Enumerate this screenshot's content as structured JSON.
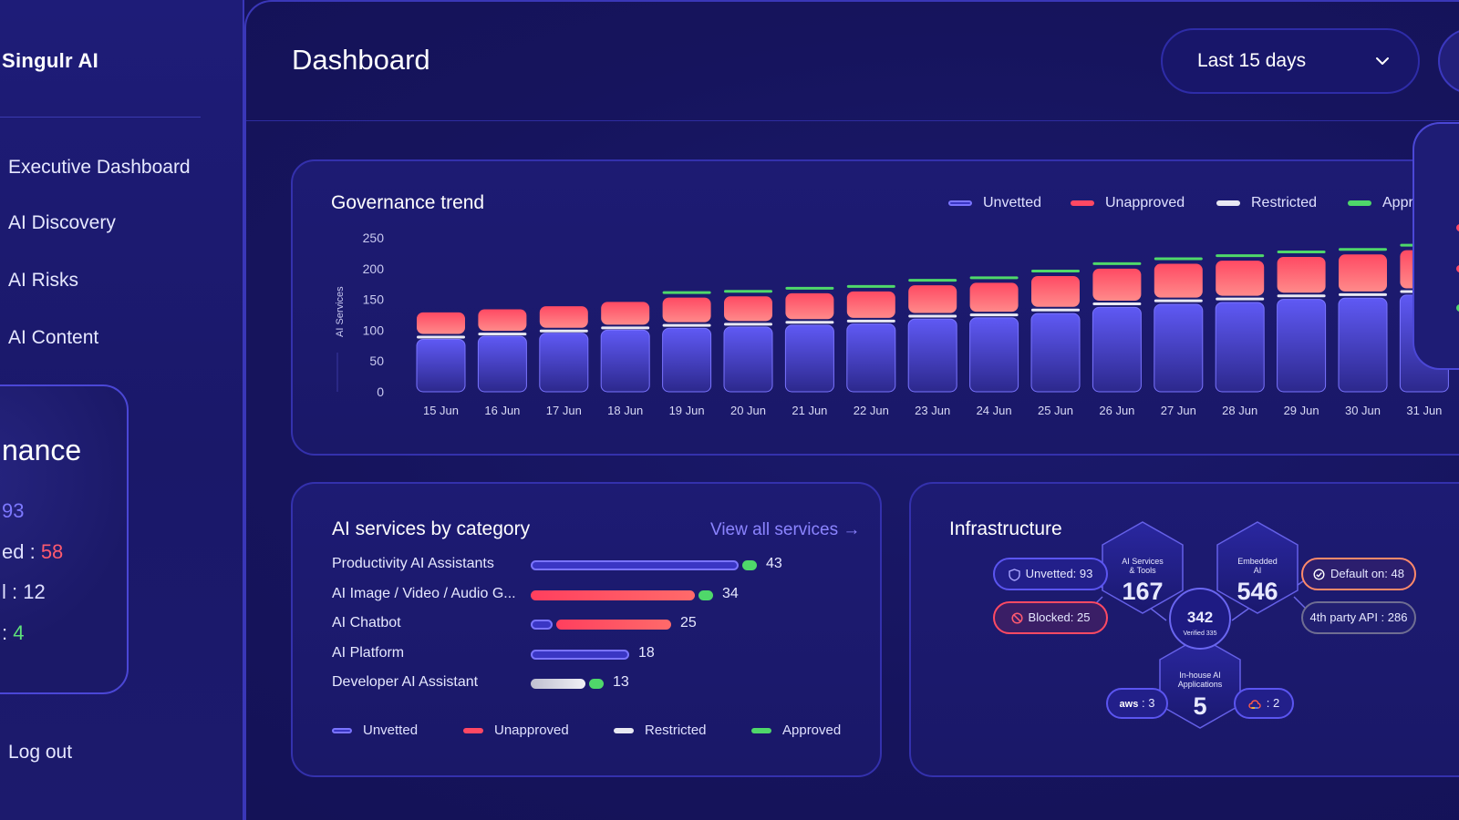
{
  "brand": "Singulr AI",
  "nav": {
    "items": [
      "Executive Dashboard",
      "AI Discovery",
      "AI Risks",
      "AI Content"
    ],
    "logout": "Log out"
  },
  "governance_panel": {
    "title": "nance",
    "lines": [
      {
        "prefix": "",
        "value": "93"
      },
      {
        "prefix": "ed : ",
        "value": "58"
      },
      {
        "prefix": "l : ",
        "value": "12"
      },
      {
        "prefix": ": ",
        "value": "4"
      }
    ]
  },
  "header": {
    "title": "Dashboard",
    "range": "Last 15 days"
  },
  "trend": {
    "title": "Governance trend",
    "legend": [
      "Unvetted",
      "Unapproved",
      "Restricted",
      "Appr"
    ]
  },
  "colors": {
    "unvetted": "#5c56f2",
    "unapproved": "#ff4863",
    "restricted": "#e8e8f2",
    "approved": "#4fd86a"
  },
  "chart_data": {
    "type": "bar",
    "title": "Governance trend",
    "ylabel": "AI Services",
    "ylim": [
      0,
      250
    ],
    "yticks": [
      "250",
      "200",
      "150",
      "100",
      "50",
      "0"
    ],
    "categories": [
      "15 Jun",
      "16 Jun",
      "17 Jun",
      "18 Jun",
      "19 Jun",
      "20 Jun",
      "21 Jun",
      "22 Jun",
      "23 Jun",
      "24 Jun",
      "25 Jun",
      "26 Jun",
      "27 Jun",
      "28 Jun",
      "29 Jun",
      "30 Jun",
      "31 Jun"
    ],
    "series": [
      {
        "name": "Unvetted",
        "values": [
          85,
          90,
          95,
          100,
          103,
          105,
          108,
          110,
          118,
          120,
          127,
          137,
          142,
          145,
          150,
          152,
          157
        ]
      },
      {
        "name": "Restricted",
        "values": [
          3,
          3,
          3,
          3,
          4,
          4,
          4,
          4,
          4,
          4,
          5,
          5,
          5,
          5,
          5,
          5,
          5
        ]
      },
      {
        "name": "Unapproved",
        "values": [
          35,
          35,
          35,
          37,
          40,
          40,
          42,
          43,
          45,
          47,
          50,
          52,
          55,
          57,
          58,
          60,
          62
        ]
      },
      {
        "name": "Approved",
        "values": [
          0,
          0,
          0,
          0,
          4,
          4,
          4,
          4,
          4,
          4,
          5,
          5,
          5,
          5,
          5,
          5,
          5
        ]
      }
    ]
  },
  "categories_card": {
    "title": "AI services by category",
    "view_all": "View all services →",
    "rows": [
      {
        "label": "Productivity AI Assistants",
        "total": "43",
        "unvetted": 38,
        "unapproved": 0,
        "restricted": 0,
        "approved": 5
      },
      {
        "label": "AI Image / Video / Audio G...",
        "total": "34",
        "unvetted": 0,
        "unapproved": 30,
        "restricted": 0,
        "approved": 4
      },
      {
        "label": "AI Chatbot",
        "total": "25",
        "unvetted": 4,
        "unapproved": 21,
        "restricted": 0,
        "approved": 0
      },
      {
        "label": "AI Platform",
        "total": "18",
        "unvetted": 18,
        "unapproved": 0,
        "restricted": 0,
        "approved": 0
      },
      {
        "label": "Developer AI Assistant",
        "total": "13",
        "unvetted": 0,
        "unapproved": 0,
        "restricted": 10,
        "approved": 3
      }
    ],
    "legend": [
      "Unvetted",
      "Unapproved",
      "Restricted",
      "Approved"
    ]
  },
  "infrastructure": {
    "title": "Infrastructure",
    "unvetted": "Unvetted: 93",
    "blocked": "Blocked: 25",
    "default_on": "Default on: 48",
    "third_party": "4th party API : 286",
    "services_label": [
      "AI Services",
      "& Tools"
    ],
    "services_value": "167",
    "embedded_label": [
      "Embedded",
      "AI"
    ],
    "embedded_value": "546",
    "center_value": "342",
    "center_sub": "Verified 335",
    "inhouse_label": [
      "In-house AI",
      "Applications"
    ],
    "inhouse_value": "5",
    "aws": ": 3",
    "aws_logo": "aws",
    "gcp": ": 2"
  }
}
